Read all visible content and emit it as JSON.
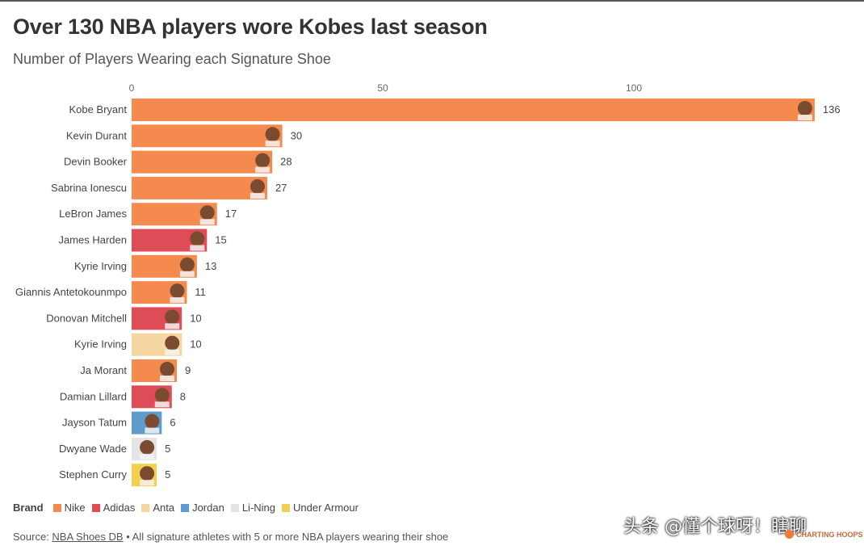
{
  "header": {
    "title": "Over 130 NBA players wore Kobes last season",
    "subtitle": "Number of Players Wearing each Signature Shoe"
  },
  "colors": {
    "Nike": "#f58a4f",
    "Adidas": "#dd4c57",
    "Anta": "#f5d6a0",
    "Jordan": "#5d9ccc",
    "Li-Ning": "#e4e4e4",
    "Under Armour": "#f2cf4f"
  },
  "chart_data": {
    "type": "bar",
    "orientation": "horizontal",
    "x_ticks": [
      0,
      50,
      100
    ],
    "xlim": [
      0,
      136
    ],
    "grid": false,
    "legend_position": "bottom-left",
    "categories": [
      "Kobe Bryant",
      "Kevin Durant",
      "Devin Booker",
      "Sabrina Ionescu",
      "LeBron James",
      "James Harden",
      "Kyrie Irving",
      "Giannis Antetokounmpo",
      "Donovan Mitchell",
      "Kyrie Irving",
      "Ja Morant",
      "Damian Lillard",
      "Jayson Tatum",
      "Dwyane Wade",
      "Stephen Curry"
    ],
    "values": [
      136,
      30,
      28,
      27,
      17,
      15,
      13,
      11,
      10,
      10,
      9,
      8,
      6,
      5,
      5
    ],
    "brands": [
      "Nike",
      "Nike",
      "Nike",
      "Nike",
      "Nike",
      "Adidas",
      "Nike",
      "Nike",
      "Adidas",
      "Anta",
      "Nike",
      "Adidas",
      "Jordan",
      "Li-Ning",
      "Under Armour"
    ]
  },
  "legend": {
    "title": "Brand",
    "items": [
      "Nike",
      "Adidas",
      "Anta",
      "Jordan",
      "Li-Ning",
      "Under Armour"
    ]
  },
  "source": {
    "prefix": "Source: ",
    "link": "NBA Shoes DB",
    "suffix": " • All signature athletes with 5 or more NBA players wearing their shoe"
  },
  "watermark": "头条 @懂个球呀！瞎聊",
  "logo_text": "CHARTING HOOPS"
}
